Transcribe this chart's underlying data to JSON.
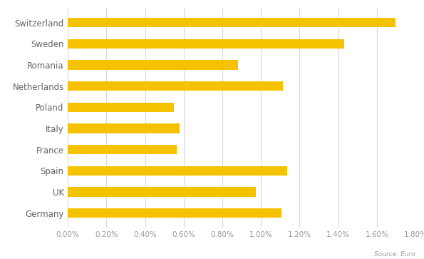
{
  "countries": [
    "Switzerland",
    "Sweden",
    "Romania",
    "Netherlands",
    "Poland",
    "Italy",
    "France",
    "Spain",
    "UK",
    "Germany"
  ],
  "values": [
    0.01695,
    0.0143,
    0.0088,
    0.01115,
    0.0055,
    0.0058,
    0.00565,
    0.01135,
    0.00975,
    0.01105
  ],
  "bar_color": "#F5C200",
  "background_color": "#FFFFFF",
  "xlim": [
    0,
    0.018
  ],
  "xtick_values": [
    0.0,
    0.002,
    0.004,
    0.006,
    0.008,
    0.01,
    0.012,
    0.014,
    0.016,
    0.018
  ],
  "source_text": "Source: Euro",
  "grid_color": "#D8D8D8",
  "bar_height": 0.45
}
